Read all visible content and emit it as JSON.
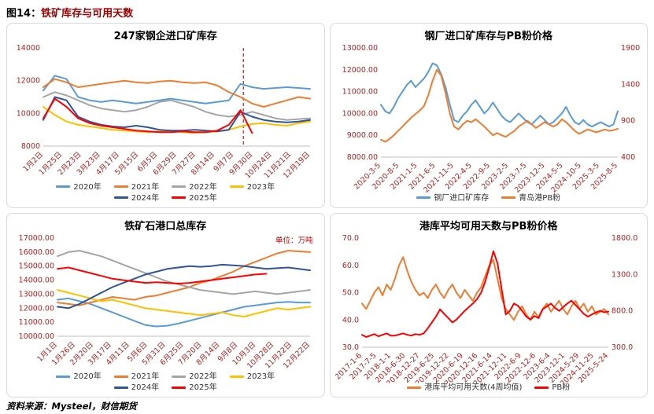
{
  "header": {
    "figure_label": "图14：",
    "title": "铁矿库存与可用天数"
  },
  "footer": {
    "source": "资料来源：Mysteel，财信期货"
  },
  "style": {
    "axis_label_color": "#B22222",
    "panel_border": "#D9D9D9",
    "dashed_line_color": "#FF0000",
    "unit_color": "#C00000",
    "title_color": "#990000",
    "axis_line_color": "#BFBFBF"
  },
  "chart_data": [
    {
      "type": "line",
      "title": "247家钢企进口矿库存",
      "x_labels": [
        "1月2日",
        "1月25日",
        "2月23日",
        "3月23日",
        "4月17日",
        "5月15日",
        "6月5日",
        "6月29日",
        "7月27日",
        "8月14日",
        "9月7日",
        "9月30日",
        "10月24日",
        "11月21日",
        "12月19日"
      ],
      "left_axis": {
        "min": 8000,
        "max": 14000,
        "ticks": [
          8000,
          10000,
          12000,
          14000
        ],
        "tick_labels": [
          "8000",
          "10000",
          "12000",
          "14000"
        ]
      },
      "dashed_vline_frac": 0.75,
      "series": [
        {
          "name": "2020年",
          "color": "#5B9BD5",
          "axis": "left",
          "values": [
            11400,
            12300,
            12100,
            11000,
            10800,
            10700,
            10800,
            10700,
            10600,
            10700,
            10800,
            10900,
            10800,
            10700,
            10600,
            10700,
            10800,
            11800,
            11600,
            11500,
            11550,
            11600,
            11550,
            11500
          ]
        },
        {
          "name": "2021年",
          "color": "#ED7D31",
          "axis": "left",
          "values": [
            11600,
            12100,
            11900,
            11600,
            11700,
            11800,
            11900,
            12000,
            11900,
            11850,
            11950,
            12000,
            11900,
            11850,
            11900,
            11700,
            11300,
            11000,
            10600,
            10400,
            10600,
            10800,
            11000,
            10900
          ]
        },
        {
          "name": "2022年",
          "color": "#A5A5A5",
          "axis": "left",
          "values": [
            11000,
            11300,
            11100,
            10800,
            10500,
            10300,
            10200,
            10100,
            10200,
            10400,
            10700,
            10800,
            10600,
            10400,
            10100,
            9900,
            9800,
            9900,
            10100,
            9900,
            9700,
            9600,
            9650,
            9700
          ]
        },
        {
          "name": "2023年",
          "color": "#FFC000",
          "axis": "left",
          "values": [
            10400,
            9900,
            9500,
            9300,
            9200,
            9100,
            9000,
            8950,
            8900,
            8850,
            8900,
            8950,
            8850,
            8800,
            8850,
            8900,
            9000,
            9200,
            9350,
            9400,
            9300,
            9250,
            9400,
            9500
          ]
        },
        {
          "name": "2024年",
          "color": "#2F5597",
          "axis": "left",
          "values": [
            9600,
            11000,
            10800,
            9800,
            9500,
            9300,
            9200,
            9150,
            9250,
            9150,
            9000,
            8950,
            8950,
            9000,
            8950,
            8900,
            9000,
            10100,
            9800,
            9600,
            9500,
            9450,
            9500,
            9600
          ]
        },
        {
          "name": "2025年",
          "color": "#FF0000",
          "axis": "left",
          "values": [
            9700,
            10900,
            10400,
            9700,
            9400,
            9250,
            9150,
            9050,
            8950,
            8900,
            8850,
            8850,
            8900,
            8850,
            8850,
            8950,
            9300,
            10200,
            8800
          ]
        }
      ]
    },
    {
      "type": "line",
      "title": "钢厂进口矿库存与PB粉价格",
      "x_labels": [
        "2020-3-5",
        "2020-8-5",
        "2021-1-5",
        "2021-6-5",
        "2021-11-5",
        "2022-4-5",
        "2022-9-5",
        "2023-2-5",
        "2023-7-5",
        "2023-12-5",
        "2024-5-5",
        "2024-10-5",
        "2025-3-5",
        "2025-8-5"
      ],
      "left_axis": {
        "min": 8000,
        "max": 13000,
        "ticks": [
          8000,
          9000,
          10000,
          11000,
          12000,
          13000
        ],
        "tick_labels": [
          "8000.00",
          "9000.00",
          "10000.00",
          "11000.00",
          "12000.00",
          "13000.00"
        ]
      },
      "right_axis": {
        "min": 400,
        "max": 1900,
        "ticks": [
          400,
          900,
          1400,
          1900
        ],
        "tick_labels": [
          "400",
          "900",
          "1400",
          "1900"
        ]
      },
      "series": [
        {
          "name": "钢厂进口矿库存",
          "color": "#5B9BD5",
          "axis": "left",
          "values": [
            10400,
            10100,
            10000,
            10300,
            10700,
            11000,
            11300,
            11500,
            11200,
            11400,
            11600,
            11900,
            12300,
            12200,
            11800,
            11200,
            10400,
            9700,
            9600,
            9900,
            10100,
            10400,
            10600,
            10300,
            10000,
            10200,
            10500,
            10200,
            9900,
            9700,
            9600,
            9800,
            10000,
            9800,
            9600,
            9500,
            9700,
            9900,
            9700,
            9500,
            9600,
            9800,
            10000,
            10300,
            9900,
            9600,
            9500,
            9700,
            9500,
            9400,
            9500,
            9600,
            9500,
            9400,
            9500,
            10100
          ]
        },
        {
          "name": "青岛港PB粉",
          "color": "#ED7D31",
          "axis": "right",
          "values": [
            640,
            610,
            650,
            700,
            760,
            820,
            880,
            940,
            990,
            1040,
            1100,
            1250,
            1450,
            1600,
            1520,
            1280,
            1000,
            820,
            780,
            850,
            900,
            880,
            920,
            870,
            820,
            760,
            700,
            730,
            700,
            680,
            720,
            760,
            820,
            860,
            900,
            850,
            800,
            840,
            880,
            850,
            820,
            850,
            920,
            880,
            820,
            760,
            720,
            750,
            780,
            760,
            740,
            760,
            780,
            760,
            770,
            790
          ]
        }
      ]
    },
    {
      "type": "line",
      "title": "铁矿石港口总库存",
      "unit": "单位：万吨",
      "x_labels": [
        "1月1日",
        "1月26日",
        "2月20日",
        "3月17日",
        "4月11日",
        "5月6日",
        "5月31日",
        "6月25日",
        "7月20日",
        "8月14日",
        "9月8日",
        "10月3日",
        "10月28日",
        "11月22日",
        "12月22日"
      ],
      "left_axis": {
        "min": 10000,
        "max": 17000,
        "ticks": [
          10000,
          11000,
          12000,
          13000,
          14000,
          15000,
          16000,
          17000
        ],
        "tick_labels": [
          "10000.00",
          "11000.00",
          "12000.00",
          "13000.00",
          "14000.00",
          "15000.00",
          "16000.00",
          "17000.00"
        ]
      },
      "series": [
        {
          "name": "2020年",
          "color": "#5B9BD5",
          "axis": "left",
          "values": [
            12600,
            12700,
            12500,
            12300,
            12000,
            11700,
            11400,
            11100,
            10800,
            10700,
            10750,
            10900,
            11100,
            11300,
            11500,
            11700,
            11900,
            12100,
            12200,
            12300,
            12400,
            12450,
            12400,
            12400
          ]
        },
        {
          "name": "2021年",
          "color": "#ED7D31",
          "axis": "left",
          "values": [
            12400,
            12300,
            12200,
            12400,
            12600,
            12800,
            12700,
            12600,
            12800,
            12900,
            13100,
            13300,
            13500,
            13800,
            14000,
            14300,
            14600,
            15000,
            15300,
            15600,
            15900,
            16100,
            16050,
            16000
          ]
        },
        {
          "name": "2022年",
          "color": "#A5A5A5",
          "axis": "left",
          "values": [
            15700,
            16000,
            16100,
            15900,
            15700,
            15400,
            15100,
            14800,
            14500,
            14200,
            13900,
            13700,
            13500,
            13300,
            13200,
            13100,
            13000,
            13100,
            13200,
            13100,
            13000,
            13100,
            13200,
            13300
          ]
        },
        {
          "name": "2023年",
          "color": "#FFC000",
          "axis": "left",
          "values": [
            13300,
            13100,
            12900,
            12700,
            12500,
            12600,
            12400,
            12200,
            12000,
            11900,
            11800,
            11700,
            11600,
            11500,
            11600,
            11700,
            11500,
            11400,
            11600,
            11800,
            12000,
            11900,
            12000,
            12100
          ]
        },
        {
          "name": "2024年",
          "color": "#2F5597",
          "axis": "left",
          "values": [
            12100,
            12000,
            12300,
            12700,
            13100,
            13500,
            13800,
            14100,
            14400,
            14600,
            14800,
            14900,
            15000,
            14950,
            15000,
            15100,
            15050,
            15000,
            14900,
            14800,
            14850,
            14900,
            14800,
            14700
          ]
        },
        {
          "name": "2025年",
          "color": "#FF0000",
          "axis": "left",
          "values": [
            14800,
            14900,
            14700,
            14500,
            14300,
            14100,
            14000,
            13900,
            13800,
            13850,
            13800,
            13750,
            13800,
            13900,
            14000,
            14100,
            14200,
            14300,
            14400,
            14450
          ]
        }
      ]
    },
    {
      "type": "line",
      "title": "港库平均可用天数与PB粉价格",
      "x_labels": [
        "2017-1-6",
        "2017-7-5",
        "2018-1-1",
        "2018-6-30",
        "2018-12-27",
        "2019-6-25",
        "2019-12-22",
        "2020-6-19",
        "2020-12-16",
        "2021-6-14",
        "2021-12-11",
        "2022-6-9",
        "2022-12-6",
        "2023-6-4",
        "2023-12-1",
        "2024-5-29",
        "2024-11-25",
        "2025-5-24"
      ],
      "left_axis": {
        "min": 30,
        "max": 70,
        "ticks": [
          30,
          40,
          50,
          60,
          70
        ],
        "tick_labels": [
          "30.0",
          "40.0",
          "50.0",
          "60.0",
          "70.0"
        ]
      },
      "right_axis": {
        "min": 300,
        "max": 1800,
        "ticks": [
          300,
          800,
          1300,
          1800
        ],
        "tick_labels": [
          "300.0",
          "800.0",
          "1300.0",
          "1800.0"
        ]
      },
      "series": [
        {
          "name": "港库平均可用天数(4周均值)",
          "color": "#ED7D31",
          "axis": "left",
          "values": [
            46,
            44,
            47,
            50,
            52,
            49,
            53,
            51,
            55,
            60,
            63,
            58,
            54,
            51,
            49,
            50,
            48,
            51,
            53,
            50,
            48,
            51,
            53,
            50,
            48,
            51,
            49,
            47,
            50,
            52,
            56,
            60,
            62,
            55,
            48,
            44,
            42,
            40,
            43,
            45,
            42,
            40,
            43,
            41,
            44,
            46,
            43,
            45,
            47,
            44,
            42,
            45,
            47,
            44,
            46,
            43,
            45,
            42,
            43,
            44,
            42
          ]
        },
        {
          "name": "PB粉",
          "color": "#FF0000",
          "axis": "right",
          "values": [
            470,
            440,
            460,
            480,
            450,
            470,
            490,
            460,
            460,
            475,
            490,
            470,
            460,
            480,
            470,
            490,
            560,
            640,
            720,
            820,
            760,
            700,
            640,
            680,
            740,
            800,
            850,
            900,
            960,
            1050,
            1200,
            1400,
            1620,
            1450,
            1100,
            750,
            800,
            900,
            870,
            800,
            720,
            680,
            730,
            700,
            820,
            860,
            900,
            840,
            800,
            850,
            900,
            940,
            880,
            820,
            760,
            720,
            750,
            780,
            800,
            780,
            790
          ]
        }
      ]
    }
  ]
}
